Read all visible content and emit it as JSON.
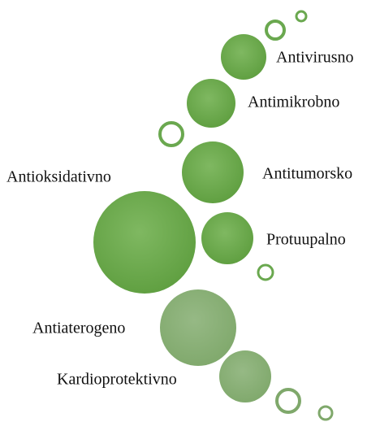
{
  "nodes": [
    {
      "label": "Antivirusno"
    },
    {
      "label": "Antimikrobno"
    },
    {
      "label": "Antitumorsko"
    },
    {
      "label": "Antioksidativno"
    },
    {
      "label": "Protuupalno"
    },
    {
      "label": "Antiaterogeno"
    },
    {
      "label": "Kardioprotektivno"
    }
  ]
}
